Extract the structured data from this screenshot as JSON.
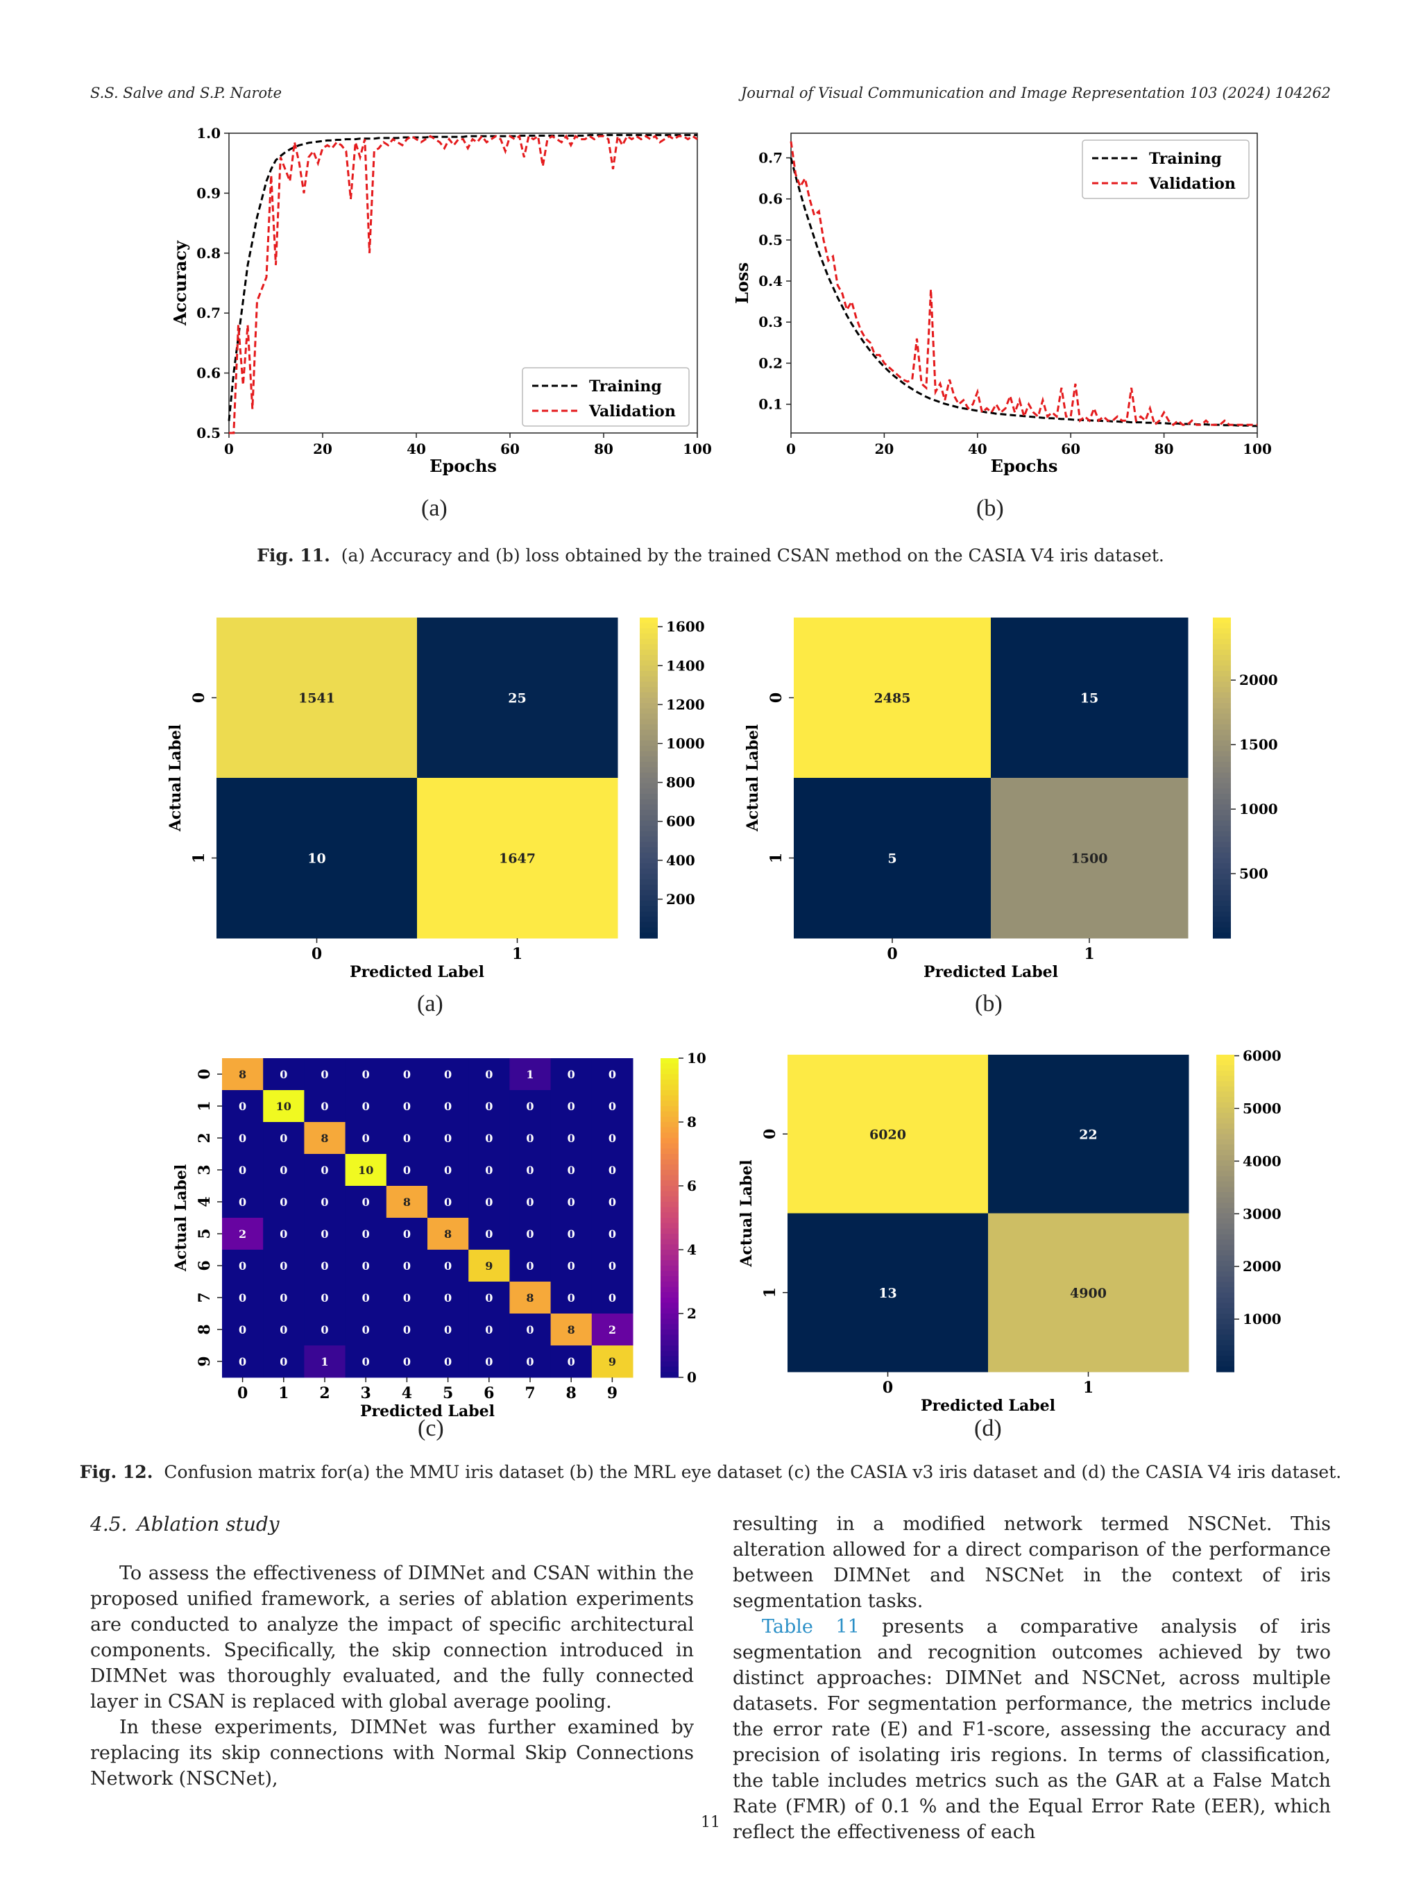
{
  "header": {
    "left": "S.S. Salve and S.P. Narote",
    "right": "Journal of Visual Communication and Image Representation 103 (2024) 104262"
  },
  "fig11": {
    "panel_a": "(a)",
    "panel_b": "(b)",
    "caption_label": "Fig. 11.",
    "caption_text": "(a) Accuracy and (b) loss obtained by the trained CSAN method on the CASIA V4 iris dataset."
  },
  "fig12": {
    "panel_a": "(a)",
    "panel_b": "(b)",
    "panel_c": "(c)",
    "panel_d": "(d)",
    "caption_label": "Fig. 12.",
    "caption_text": "Confusion matrix for(a) the MMU iris dataset (b) the MRL eye dataset (c) the CASIA v3 iris dataset and (d) the CASIA V4 iris dataset."
  },
  "chart_data": [
    {
      "type": "line",
      "xlabel": "Epochs",
      "ylabel": "Accuracy",
      "xlim": [
        0,
        100
      ],
      "ylim": [
        0.5,
        1.0
      ],
      "xticks": [
        "0",
        "20",
        "40",
        "60",
        "80",
        "100"
      ],
      "yticks": [
        "0.5",
        "0.6",
        "0.7",
        "0.8",
        "0.9",
        "1.0"
      ],
      "legend_position": "bottom-right",
      "x": [
        0,
        1,
        2,
        3,
        4,
        5,
        6,
        7,
        8,
        9,
        10,
        11,
        12,
        13,
        14,
        15,
        16,
        17,
        18,
        19,
        20,
        21,
        22,
        23,
        24,
        25,
        26,
        27,
        28,
        29,
        30,
        31,
        32,
        33,
        34,
        35,
        36,
        37,
        38,
        39,
        40,
        41,
        42,
        43,
        44,
        45,
        46,
        47,
        48,
        49,
        50,
        51,
        52,
        53,
        54,
        55,
        56,
        57,
        58,
        59,
        60,
        61,
        62,
        63,
        64,
        65,
        66,
        67,
        68,
        69,
        70,
        71,
        72,
        73,
        74,
        75,
        76,
        77,
        78,
        79,
        80,
        81,
        82,
        83,
        84,
        85,
        86,
        87,
        88,
        89,
        90,
        91,
        92,
        93,
        94,
        95,
        96,
        97,
        98,
        99,
        100
      ],
      "series": [
        {
          "name": "Training",
          "color": "#000000",
          "values": [
            0.52,
            0.6,
            0.66,
            0.72,
            0.78,
            0.82,
            0.86,
            0.89,
            0.92,
            0.94,
            0.955,
            0.962,
            0.968,
            0.973,
            0.977,
            0.98,
            0.982,
            0.984,
            0.985,
            0.986,
            0.987,
            0.988,
            0.988,
            0.989,
            0.989,
            0.99,
            0.99,
            0.99,
            0.991,
            0.991,
            0.991,
            0.991,
            0.992,
            0.992,
            0.992,
            0.992,
            0.992,
            0.993,
            0.993,
            0.993,
            0.993,
            0.993,
            0.993,
            0.994,
            0.994,
            0.994,
            0.994,
            0.994,
            0.994,
            0.994,
            0.994,
            0.995,
            0.995,
            0.995,
            0.995,
            0.995,
            0.995,
            0.995,
            0.995,
            0.995,
            0.995,
            0.995,
            0.996,
            0.996,
            0.996,
            0.996,
            0.996,
            0.996,
            0.996,
            0.996,
            0.996,
            0.996,
            0.996,
            0.996,
            0.996,
            0.996,
            0.996,
            0.997,
            0.997,
            0.997,
            0.997,
            0.997,
            0.997,
            0.997,
            0.997,
            0.997,
            0.997,
            0.997,
            0.997,
            0.997,
            0.997,
            0.997,
            0.997,
            0.997,
            0.997,
            0.997,
            0.997,
            0.997,
            0.997,
            0.997,
            0.997
          ]
        },
        {
          "name": "Validation",
          "color": "#e41a1c",
          "values": [
            0.5,
            0.5,
            0.68,
            0.58,
            0.68,
            0.54,
            0.72,
            0.74,
            0.76,
            0.93,
            0.78,
            0.96,
            0.94,
            0.92,
            0.985,
            0.95,
            0.9,
            0.96,
            0.97,
            0.95,
            0.975,
            0.98,
            0.975,
            0.985,
            0.98,
            0.97,
            0.89,
            0.985,
            0.96,
            0.99,
            0.8,
            0.97,
            0.975,
            0.985,
            0.98,
            0.99,
            0.985,
            0.98,
            0.99,
            0.995,
            0.99,
            0.985,
            0.99,
            0.995,
            0.99,
            0.985,
            0.975,
            0.99,
            0.98,
            0.99,
            0.99,
            0.975,
            0.99,
            0.985,
            0.995,
            0.985,
            0.99,
            0.995,
            0.99,
            0.97,
            0.995,
            0.99,
            0.995,
            0.96,
            0.995,
            0.99,
            0.995,
            0.945,
            0.99,
            0.995,
            0.99,
            0.985,
            0.995,
            0.98,
            0.995,
            0.99,
            0.99,
            0.995,
            0.99,
            0.995,
            0.995,
            0.99,
            0.94,
            0.995,
            0.98,
            0.995,
            0.99,
            0.995,
            0.99,
            0.995,
            0.99,
            0.995,
            0.985,
            0.99,
            0.995,
            0.99,
            0.995,
            0.995,
            0.99,
            0.995,
            0.99
          ]
        }
      ]
    },
    {
      "type": "line",
      "xlabel": "Epochs",
      "ylabel": "Loss",
      "xlim": [
        0,
        100
      ],
      "ylim": [
        0.03,
        0.76
      ],
      "xticks": [
        "0",
        "20",
        "40",
        "60",
        "80",
        "100"
      ],
      "yticks": [
        "0.1",
        "0.2",
        "0.3",
        "0.4",
        "0.5",
        "0.6",
        "0.7"
      ],
      "legend_position": "top-right",
      "x": [
        0,
        1,
        2,
        3,
        4,
        5,
        6,
        7,
        8,
        9,
        10,
        11,
        12,
        13,
        14,
        15,
        16,
        17,
        18,
        19,
        20,
        21,
        22,
        23,
        24,
        25,
        26,
        27,
        28,
        29,
        30,
        31,
        32,
        33,
        34,
        35,
        36,
        37,
        38,
        39,
        40,
        41,
        42,
        43,
        44,
        45,
        46,
        47,
        48,
        49,
        50,
        51,
        52,
        53,
        54,
        55,
        56,
        57,
        58,
        59,
        60,
        61,
        62,
        63,
        64,
        65,
        66,
        67,
        68,
        69,
        70,
        71,
        72,
        73,
        74,
        75,
        76,
        77,
        78,
        79,
        80,
        81,
        82,
        83,
        84,
        85,
        86,
        87,
        88,
        89,
        90,
        91,
        92,
        93,
        94,
        95,
        96,
        97,
        98,
        99,
        100
      ],
      "series": [
        {
          "name": "Training",
          "color": "#000000",
          "values": [
            0.7,
            0.655,
            0.615,
            0.575,
            0.54,
            0.505,
            0.47,
            0.44,
            0.41,
            0.385,
            0.36,
            0.338,
            0.316,
            0.296,
            0.278,
            0.261,
            0.245,
            0.23,
            0.216,
            0.203,
            0.191,
            0.18,
            0.17,
            0.161,
            0.152,
            0.144,
            0.137,
            0.13,
            0.124,
            0.118,
            0.113,
            0.109,
            0.105,
            0.101,
            0.098,
            0.095,
            0.092,
            0.09,
            0.088,
            0.086,
            0.084,
            0.082,
            0.08,
            0.079,
            0.077,
            0.076,
            0.075,
            0.074,
            0.073,
            0.072,
            0.071,
            0.07,
            0.069,
            0.068,
            0.067,
            0.066,
            0.066,
            0.065,
            0.064,
            0.064,
            0.063,
            0.062,
            0.062,
            0.061,
            0.061,
            0.06,
            0.06,
            0.059,
            0.059,
            0.058,
            0.058,
            0.057,
            0.057,
            0.056,
            0.056,
            0.056,
            0.055,
            0.055,
            0.054,
            0.054,
            0.054,
            0.053,
            0.053,
            0.053,
            0.052,
            0.052,
            0.052,
            0.051,
            0.051,
            0.051,
            0.05,
            0.05,
            0.05,
            0.049,
            0.049,
            0.049,
            0.048,
            0.048,
            0.048,
            0.047,
            0.047
          ]
        },
        {
          "name": "Validation",
          "color": "#e41a1c",
          "values": [
            0.74,
            0.66,
            0.63,
            0.65,
            0.6,
            0.56,
            0.57,
            0.5,
            0.45,
            0.46,
            0.39,
            0.37,
            0.33,
            0.35,
            0.31,
            0.28,
            0.26,
            0.25,
            0.22,
            0.22,
            0.2,
            0.19,
            0.18,
            0.17,
            0.16,
            0.155,
            0.16,
            0.26,
            0.15,
            0.14,
            0.38,
            0.13,
            0.15,
            0.11,
            0.16,
            0.12,
            0.1,
            0.11,
            0.09,
            0.1,
            0.13,
            0.08,
            0.09,
            0.08,
            0.1,
            0.08,
            0.09,
            0.12,
            0.08,
            0.11,
            0.07,
            0.1,
            0.08,
            0.07,
            0.11,
            0.07,
            0.08,
            0.07,
            0.14,
            0.07,
            0.07,
            0.15,
            0.06,
            0.07,
            0.06,
            0.09,
            0.06,
            0.07,
            0.06,
            0.06,
            0.07,
            0.06,
            0.06,
            0.14,
            0.06,
            0.07,
            0.06,
            0.09,
            0.05,
            0.06,
            0.08,
            0.06,
            0.05,
            0.06,
            0.05,
            0.05,
            0.06,
            0.05,
            0.05,
            0.06,
            0.05,
            0.05,
            0.05,
            0.06,
            0.05,
            0.05,
            0.05,
            0.05,
            0.05,
            0.05,
            0.05
          ]
        }
      ]
    },
    {
      "type": "heatmap",
      "xlabel": "Predicted Label",
      "ylabel": "Actual Label",
      "x_ticks": [
        "0",
        "1"
      ],
      "y_ticks": [
        "0",
        "1"
      ],
      "matrix": [
        [
          1541,
          25
        ],
        [
          10,
          1647
        ]
      ],
      "colorbar": {
        "min": 0,
        "max": 1647,
        "ticks": [
          "200",
          "400",
          "600",
          "800",
          "1000",
          "1200",
          "1400",
          "1600"
        ]
      }
    },
    {
      "type": "heatmap",
      "xlabel": "Predicted Label",
      "ylabel": "Actual Label",
      "x_ticks": [
        "0",
        "1"
      ],
      "y_ticks": [
        "0",
        "1"
      ],
      "matrix": [
        [
          2485,
          15
        ],
        [
          5,
          1500
        ]
      ],
      "colorbar": {
        "min": 0,
        "max": 2485,
        "ticks": [
          "500",
          "1000",
          "1500",
          "2000"
        ]
      }
    },
    {
      "type": "heatmap",
      "colormap": "plasma",
      "xlabel": "Predicted Label",
      "ylabel": "Actual Label",
      "x_ticks": [
        "0",
        "1",
        "2",
        "3",
        "4",
        "5",
        "6",
        "7",
        "8",
        "9"
      ],
      "y_ticks": [
        "0",
        "1",
        "2",
        "3",
        "4",
        "5",
        "6",
        "7",
        "8",
        "9"
      ],
      "matrix": [
        [
          8,
          0,
          0,
          0,
          0,
          0,
          0,
          1,
          0,
          0
        ],
        [
          0,
          10,
          0,
          0,
          0,
          0,
          0,
          0,
          0,
          0
        ],
        [
          0,
          0,
          8,
          0,
          0,
          0,
          0,
          0,
          0,
          0
        ],
        [
          0,
          0,
          0,
          10,
          0,
          0,
          0,
          0,
          0,
          0
        ],
        [
          0,
          0,
          0,
          0,
          8,
          0,
          0,
          0,
          0,
          0
        ],
        [
          2,
          0,
          0,
          0,
          0,
          8,
          0,
          0,
          0,
          0
        ],
        [
          0,
          0,
          0,
          0,
          0,
          0,
          9,
          0,
          0,
          0
        ],
        [
          0,
          0,
          0,
          0,
          0,
          0,
          0,
          8,
          0,
          0
        ],
        [
          0,
          0,
          0,
          0,
          0,
          0,
          0,
          0,
          8,
          2
        ],
        [
          0,
          0,
          1,
          0,
          0,
          0,
          0,
          0,
          0,
          9
        ]
      ],
      "colorbar": {
        "min": 0,
        "max": 10,
        "ticks": [
          "0",
          "2",
          "4",
          "6",
          "8",
          "10"
        ]
      }
    },
    {
      "type": "heatmap",
      "xlabel": "Predicted Label",
      "ylabel": "Actual Label",
      "x_ticks": [
        "0",
        "1"
      ],
      "y_ticks": [
        "0",
        "1"
      ],
      "matrix": [
        [
          6020,
          22
        ],
        [
          13,
          4900
        ]
      ],
      "colorbar": {
        "min": 0,
        "max": 6020,
        "ticks": [
          "1000",
          "2000",
          "3000",
          "4000",
          "5000",
          "6000"
        ]
      }
    }
  ],
  "section": {
    "title": "4.5. Ablation study",
    "left_p1": "To assess the effectiveness of DIMNet and CSAN within the proposed unified framework, a series of ablation experiments are conducted to analyze the impact of specific architectural components. Specifically, the skip connection introduced in DIMNet was thoroughly evaluated, and the fully connected layer in CSAN is replaced with global average pooling.",
    "left_p2": "In these experiments, DIMNet was further examined by replacing its skip connections with Normal Skip Connections Network (NSCNet),",
    "right_p1": "resulting in a modified network termed NSCNet. This alteration allowed for a direct comparison of the performance between DIMNet and NSCNet in the context of iris segmentation tasks.",
    "right_p2_link": "Table 11",
    "right_p2": " presents a comparative analysis of iris segmentation and recognition outcomes achieved by two distinct approaches: DIMNet and NSCNet, across multiple datasets. For segmentation performance, the metrics include the error rate (E) and F1-score, assessing the accuracy and precision of isolating iris regions. In terms of classification, the table includes metrics such as the GAR at a False Match Rate (FMR) of 0.1 % and the Equal Error Rate (EER), which reflect the effectiveness of each"
  },
  "page_number": "11"
}
